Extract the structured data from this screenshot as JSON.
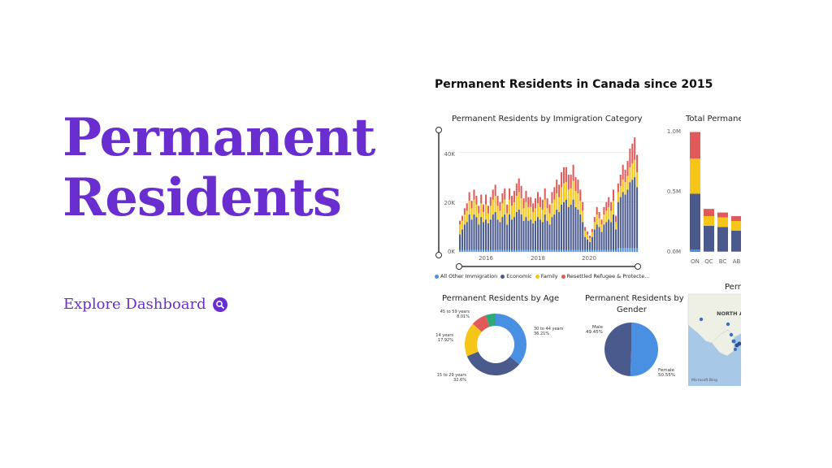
{
  "hero": {
    "line1": "Permanent",
    "line2": "Residents"
  },
  "explore": {
    "label": "Explore Dashboard",
    "icon": "search-icon"
  },
  "dashboard": {
    "title": "Permanent Residents in Canada since 2015",
    "category_chart": {
      "title": "Permanent Residents by Immigration Category",
      "y_ticks": [
        "40K",
        "20K",
        "0K"
      ],
      "x_ticks": [
        "2016",
        "2018",
        "2020"
      ]
    },
    "legend": [
      {
        "label": "All Other Immigration",
        "color": "#4a90e2"
      },
      {
        "label": "Economic",
        "color": "#4a5a8c"
      },
      {
        "label": "Family",
        "color": "#f5c518"
      },
      {
        "label": "Resettled Refugee & Protecte...",
        "color": "#e05a5a"
      }
    ],
    "province_chart": {
      "title": "Total Permanent",
      "y_ticks": [
        "1.0M",
        "0.5M",
        "0.0M"
      ]
    },
    "age_chart": {
      "title": "Permanent Residents by Age"
    },
    "gender_chart": {
      "title_line1": "Permanent Residents by",
      "title_line2": "Gender"
    },
    "map": {
      "title": "Perm",
      "region_label": "NORTH A",
      "watermark": "Microsoft Bing"
    }
  },
  "chart_data": [
    {
      "type": "bar",
      "title": "Permanent Residents by Immigration Category",
      "stacked": true,
      "x_ticks": [
        "2016",
        "2018",
        "2020"
      ],
      "ylim": [
        0,
        47000
      ],
      "series": [
        {
          "name": "All Other Immigration",
          "color": "#4a90e2",
          "values": [
            700,
            700,
            700,
            700,
            700,
            700,
            700,
            700,
            700,
            700,
            700,
            700,
            700,
            700,
            700,
            700,
            700,
            700,
            700,
            700,
            700,
            700,
            700,
            700,
            700,
            700,
            700,
            700,
            700,
            700,
            700,
            700,
            700,
            700,
            700,
            700,
            700,
            700,
            700,
            700,
            700,
            700,
            700,
            700,
            700,
            700,
            700,
            700,
            700,
            700,
            700,
            700,
            700,
            700,
            700,
            700,
            700,
            700,
            700,
            700,
            700,
            700,
            700,
            700,
            700,
            700,
            700,
            1500,
            1500,
            1500,
            1500,
            1500,
            1500,
            1500,
            1500,
            1500
          ]
        },
        {
          "name": "Economic",
          "color": "#4a5a8c",
          "values": [
            6300,
            8300,
            10300,
            11300,
            14300,
            12300,
            14300,
            13300,
            10300,
            13300,
            11300,
            12300,
            10800,
            12300,
            14300,
            15300,
            12300,
            11300,
            13300,
            14300,
            10300,
            14300,
            12300,
            13300,
            15300,
            16300,
            14300,
            11800,
            13300,
            11800,
            12300,
            10800,
            11800,
            13300,
            12300,
            11300,
            14300,
            11800,
            10300,
            13300,
            14300,
            16300,
            15300,
            18300,
            19300,
            20300,
            17300,
            18300,
            20300,
            17300,
            16300,
            14300,
            11300,
            5300,
            4300,
            3300,
            5300,
            8300,
            10300,
            9300,
            7300,
            10300,
            11300,
            12300,
            11300,
            14300,
            8300,
            18500,
            20500,
            22500,
            21500,
            23500,
            26500,
            27500,
            28500,
            24500
          ]
        },
        {
          "name": "Family",
          "color": "#f5c518",
          "values": [
            4000,
            3500,
            4000,
            4500,
            5500,
            4500,
            6000,
            5000,
            4500,
            5500,
            4000,
            6000,
            4000,
            5500,
            6000,
            6500,
            5500,
            4500,
            5500,
            6000,
            4500,
            6000,
            5500,
            6000,
            6500,
            7000,
            6500,
            5000,
            6000,
            5500,
            5000,
            4500,
            5000,
            5500,
            5000,
            5000,
            6000,
            5000,
            4500,
            5500,
            6000,
            6500,
            6000,
            7000,
            7500,
            7000,
            7000,
            6500,
            7500,
            6500,
            6500,
            5500,
            4500,
            2500,
            2000,
            1500,
            2000,
            3000,
            4000,
            3500,
            3000,
            4000,
            4500,
            5000,
            4500,
            5500,
            3000,
            4000,
            4500,
            5000,
            5000,
            5500,
            6000,
            6500,
            7000,
            6000
          ]
        },
        {
          "name": "Resettled Refugee & Protected",
          "color": "#e05a5a",
          "values": [
            1500,
            2000,
            2500,
            3000,
            3500,
            3000,
            4000,
            3500,
            3000,
            3500,
            3000,
            4000,
            3000,
            3500,
            4000,
            4500,
            4000,
            3500,
            4000,
            4500,
            3500,
            4500,
            4000,
            4500,
            5000,
            5500,
            5000,
            4000,
            4500,
            4000,
            4000,
            3500,
            4000,
            4500,
            4000,
            4000,
            4500,
            4000,
            3500,
            4500,
            5000,
            5500,
            5000,
            6000,
            6500,
            6000,
            6000,
            5500,
            6500,
            5500,
            5500,
            4500,
            3500,
            1500,
            1200,
            1000,
            1200,
            2000,
            3000,
            2500,
            2000,
            3000,
            3500,
            4000,
            3500,
            4500,
            2500,
            3500,
            4500,
            6000,
            5000,
            6000,
            7500,
            8000,
            9000,
            7000
          ]
        }
      ]
    },
    {
      "type": "bar",
      "title": "Total Permanent",
      "stacked": true,
      "categories": [
        "ON",
        "QC",
        "BC",
        "AB"
      ],
      "ylim": [
        0,
        1000000
      ],
      "series": [
        {
          "name": "All Other Immigration",
          "color": "#4a90e2",
          "values": [
            20000,
            5000,
            5000,
            5000
          ]
        },
        {
          "name": "Economic",
          "color": "#4a5a8c",
          "values": [
            460000,
            210000,
            200000,
            170000
          ]
        },
        {
          "name": "Family",
          "color": "#f5c518",
          "values": [
            290000,
            80000,
            80000,
            80000
          ]
        },
        {
          "name": "Resettled Refugee & Protected",
          "color": "#e05a5a",
          "values": [
            220000,
            60000,
            40000,
            40000
          ]
        }
      ]
    },
    {
      "type": "pie",
      "title": "Permanent Residents by Age",
      "donut": true,
      "slices": [
        {
          "label": "30 to 44 years",
          "value": 36.21,
          "value_label": "36.21%",
          "color": "#4a90e2"
        },
        {
          "label": "15 to 29 years",
          "value": 32.6,
          "value_label": "32.6%",
          "color": "#4a5a8c"
        },
        {
          "label": "14 years",
          "value": 17.92,
          "value_label": "17.92%",
          "color": "#f5c518"
        },
        {
          "label": "45 to 59 years",
          "value": 8.01,
          "value_label": "8.01%",
          "color": "#e05a5a"
        },
        {
          "label": "",
          "value": 5.26,
          "value_label": "",
          "color": "#2eaa78"
        }
      ]
    },
    {
      "type": "pie",
      "title": "Permanent Residents by Gender",
      "slices": [
        {
          "label": "Female",
          "value": 50.55,
          "value_label": "50.55%",
          "color": "#4a90e2"
        },
        {
          "label": "Male",
          "value": 49.45,
          "value_label": "49.45%",
          "color": "#4a5a8c"
        }
      ]
    }
  ]
}
